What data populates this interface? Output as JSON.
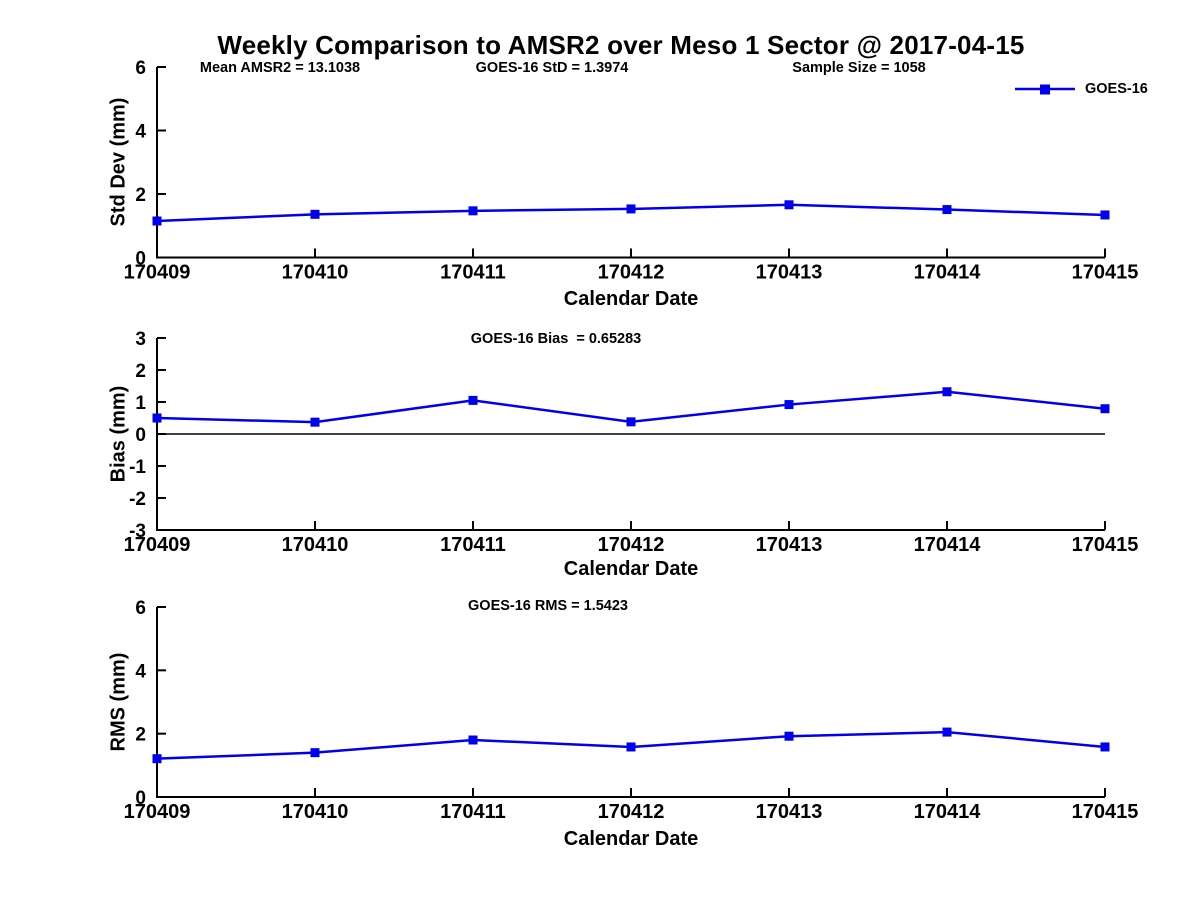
{
  "title": "Weekly Comparison to AMSR2 over Meso 1 Sector @ 2017-04-15",
  "legend": {
    "label": "GOES-16",
    "color": "#0000EE"
  },
  "chart_data": [
    {
      "type": "line",
      "title": "",
      "categories": [
        "170409",
        "170410",
        "170411",
        "170412",
        "170413",
        "170414",
        "170415"
      ],
      "series": [
        {
          "name": "GOES-16",
          "color": "#0000EE",
          "values": [
            1.15,
            1.36,
            1.47,
            1.53,
            1.66,
            1.51,
            1.34
          ]
        }
      ],
      "xlabel": "Calendar Date",
      "ylabel": "Std Dev (mm)",
      "ylim": [
        0,
        6
      ],
      "yticks": [
        0,
        2,
        4,
        6
      ],
      "grid": false,
      "legend_position": "upper right",
      "zero_line": false,
      "annotations": [
        "Mean AMSR2 = 13.1038",
        "GOES-16 StD = 1.3974",
        "Sample Size = 1058"
      ]
    },
    {
      "type": "line",
      "title": "",
      "categories": [
        "170409",
        "170410",
        "170411",
        "170412",
        "170413",
        "170414",
        "170415"
      ],
      "series": [
        {
          "name": "GOES-16",
          "color": "#0000EE",
          "values": [
            0.5,
            0.37,
            1.05,
            0.38,
            0.92,
            1.32,
            0.79
          ]
        }
      ],
      "xlabel": "Calendar Date",
      "ylabel": "Bias (mm)",
      "ylim": [
        -3,
        3
      ],
      "yticks": [
        -3,
        -2,
        -1,
        0,
        1,
        2,
        3
      ],
      "grid": false,
      "zero_line": true,
      "annotations": [
        "GOES-16 Bias  = 0.65283"
      ]
    },
    {
      "type": "line",
      "title": "",
      "categories": [
        "170409",
        "170410",
        "170411",
        "170412",
        "170413",
        "170414",
        "170415"
      ],
      "series": [
        {
          "name": "GOES-16",
          "color": "#0000EE",
          "values": [
            1.21,
            1.4,
            1.8,
            1.58,
            1.92,
            2.05,
            1.58
          ]
        }
      ],
      "xlabel": "Calendar Date",
      "ylabel": "RMS (mm)",
      "ylim": [
        0,
        6
      ],
      "yticks": [
        0,
        2,
        4,
        6
      ],
      "grid": false,
      "zero_line": false,
      "annotations": [
        "GOES-16 RMS = 1.5423"
      ]
    }
  ]
}
